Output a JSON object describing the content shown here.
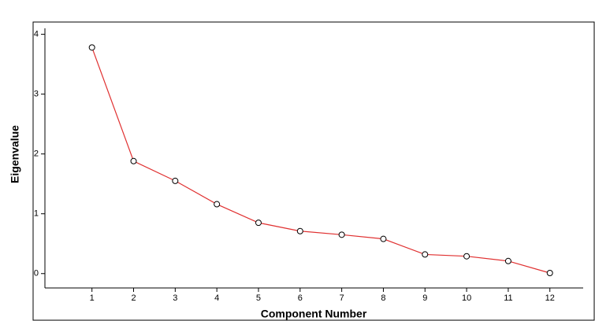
{
  "chart_data": {
    "type": "line",
    "x_label": "Component Number",
    "y_label": "Eigenvalue",
    "x": [
      1,
      2,
      3,
      4,
      5,
      6,
      7,
      8,
      9,
      10,
      11,
      12
    ],
    "series": [
      {
        "color": "#e03030",
        "values": [
          3.78,
          1.88,
          1.55,
          1.16,
          0.85,
          0.71,
          0.65,
          0.58,
          0.32,
          0.29,
          0.21,
          0.01
        ]
      }
    ],
    "xlim": [
      -0.13,
      12.8
    ],
    "xticks": [
      1,
      2,
      3,
      4,
      5,
      6,
      7,
      8,
      9,
      10,
      11,
      12
    ],
    "ylim": [
      -0.24,
      4.1
    ],
    "yticks": [
      0,
      1,
      2,
      3,
      4
    ]
  }
}
